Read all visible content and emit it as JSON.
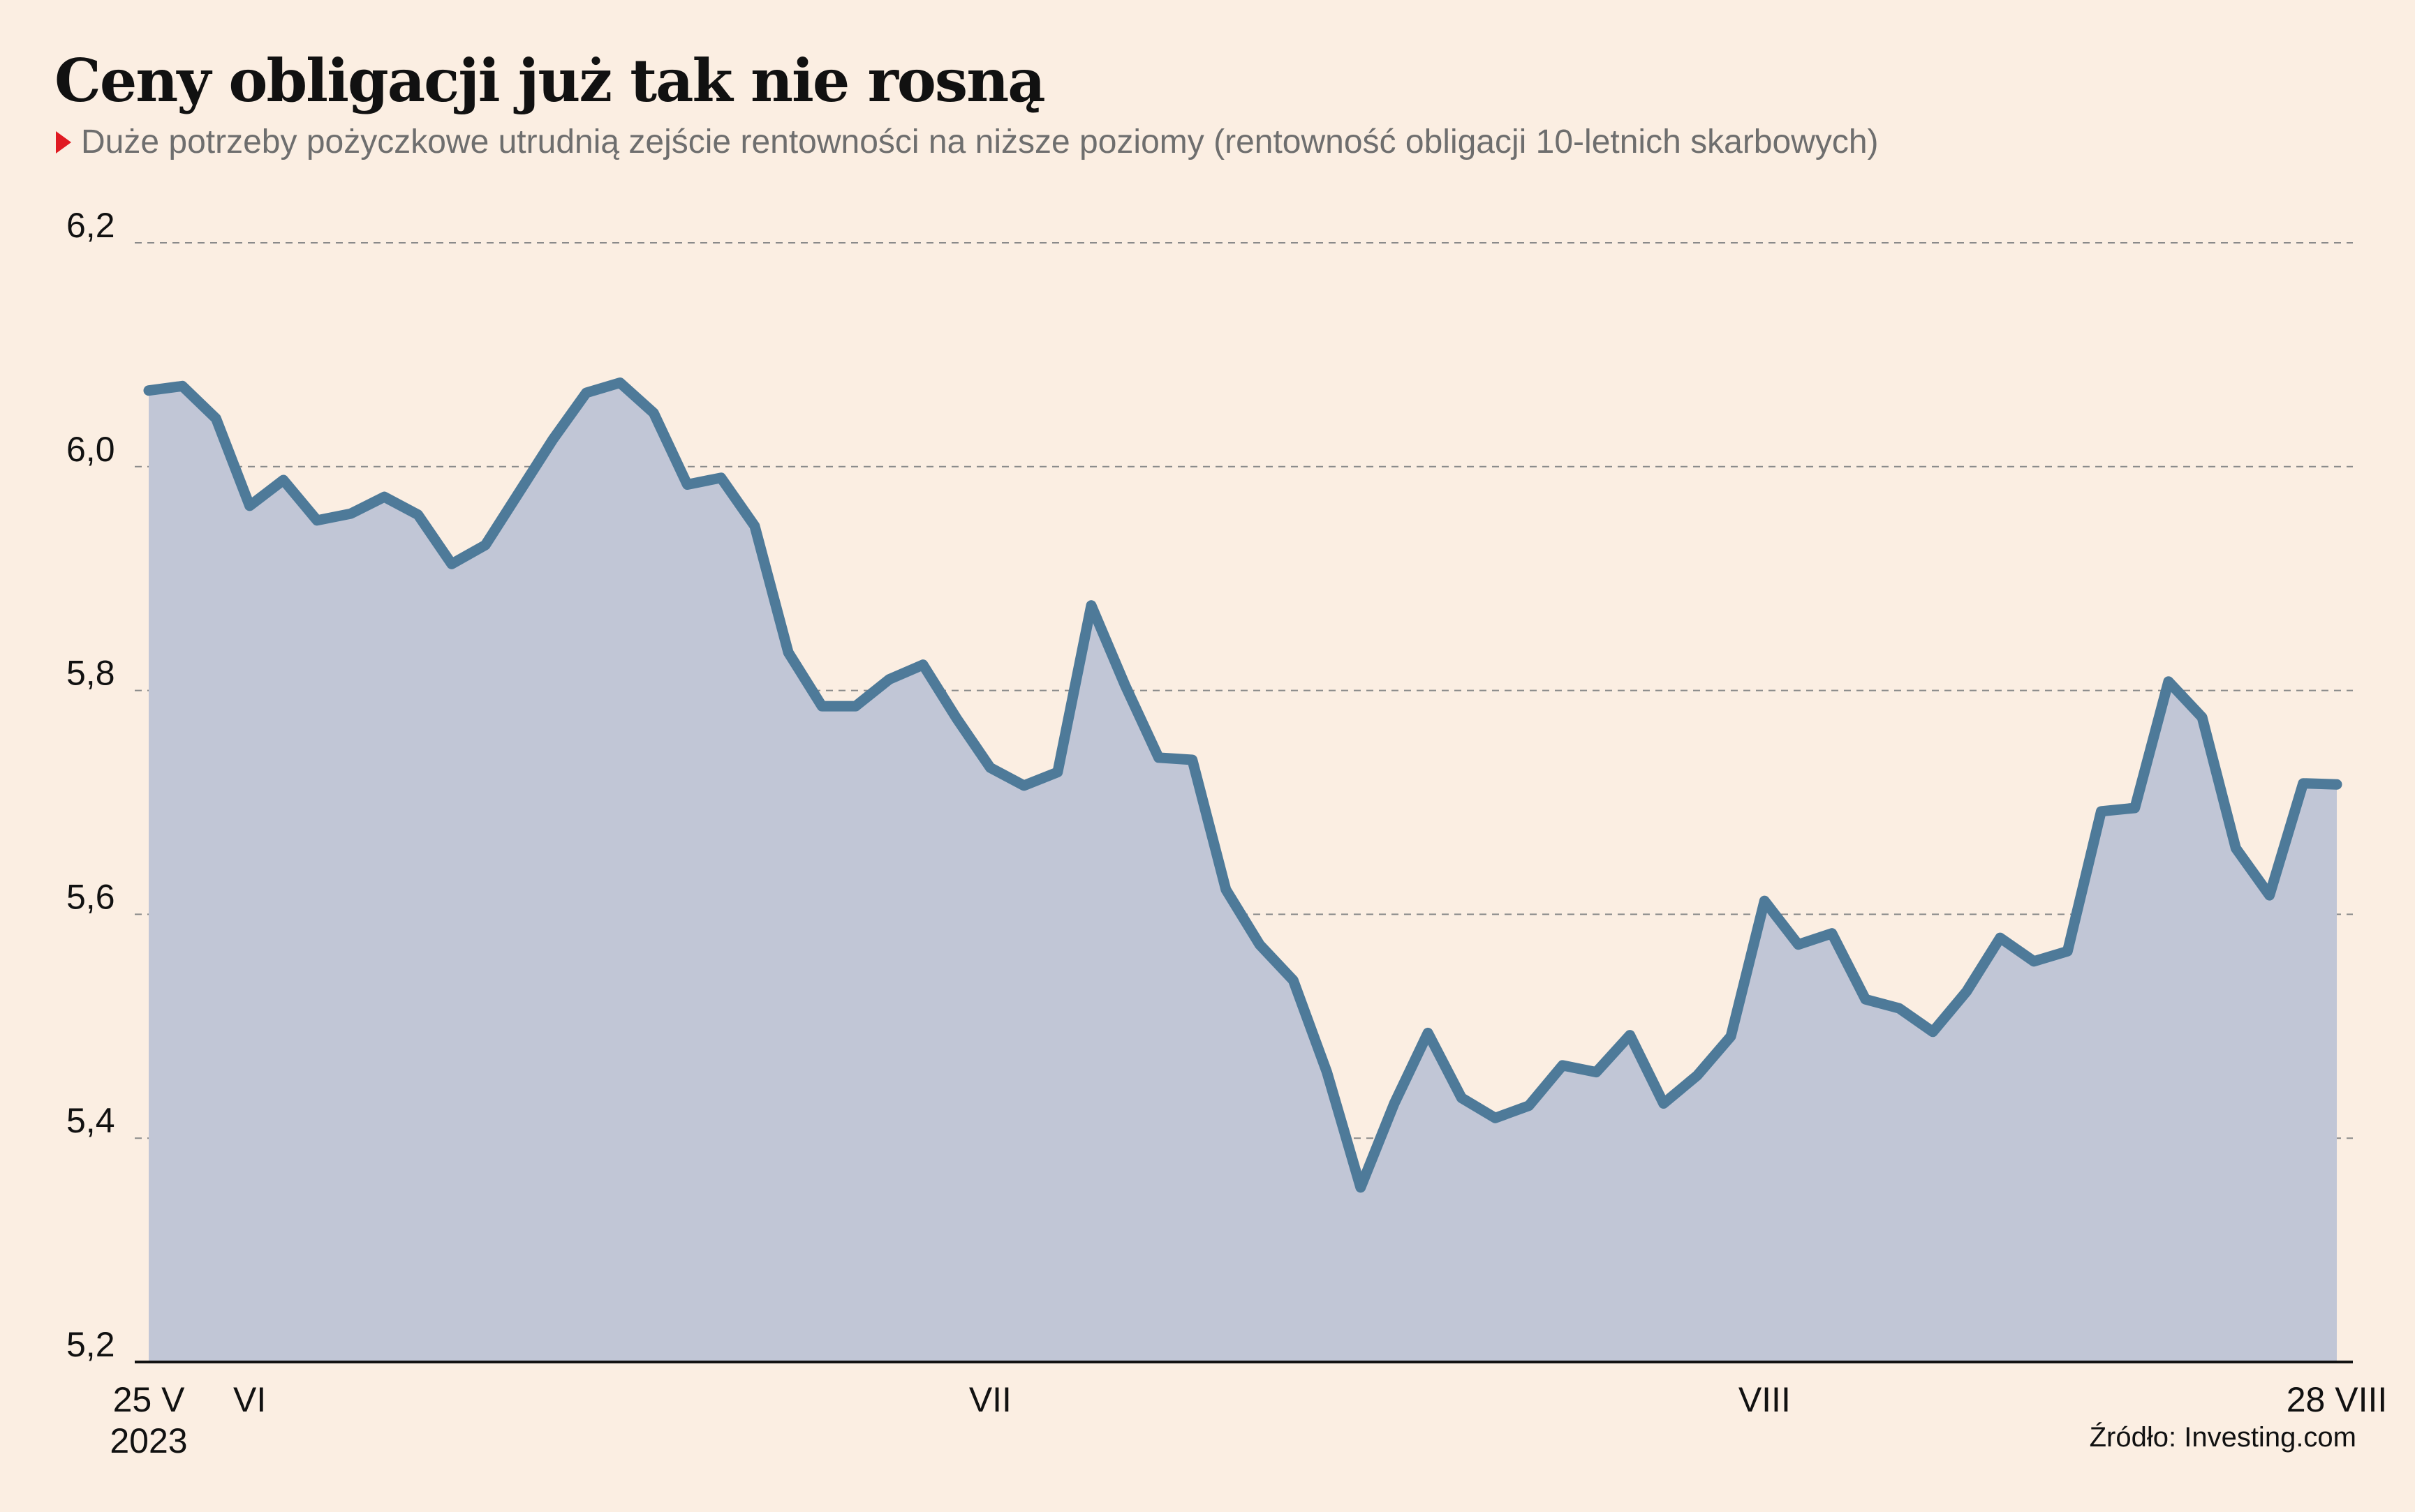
{
  "title": "Ceny obligacji już tak nie rosną",
  "subtitle": "Duże potrzeby pożyczkowe utrudnią zejście rentowności na niższe poziomy (rentowność obligacji 10-letnich skarbowych)",
  "source": "Źródło: Investing.com",
  "colors": {
    "line": "#4e7a99",
    "area": "#c1c6d6",
    "background": "#fbeee2",
    "grid": "#8a8a8a",
    "marker": "#e01a22"
  },
  "chart_data": {
    "type": "area",
    "title": "Ceny obligacji już tak nie rosną",
    "ylim": [
      5.2,
      6.2
    ],
    "y_ticks": [
      "6,2",
      "6,0",
      "5,8",
      "5,6",
      "5,4",
      "5,2"
    ],
    "y_tick_values": [
      6.2,
      6.0,
      5.8,
      5.6,
      5.4,
      5.2
    ],
    "grid": "horizontal dashed",
    "x_labels": [
      {
        "label": "25 V",
        "sub": "2023",
        "index": 0
      },
      {
        "label": "VI",
        "index": 3
      },
      {
        "label": "VII",
        "index": 25
      },
      {
        "label": "VIII",
        "index": 48
      },
      {
        "label": "28 VIII",
        "index": 65
      }
    ],
    "series": [
      {
        "values": [
          6.068,
          6.072,
          6.043,
          5.965,
          5.988,
          5.952,
          5.958,
          5.973,
          5.957,
          5.913,
          5.93,
          5.977,
          6.024,
          6.066,
          6.075,
          6.048,
          5.984,
          5.99,
          5.947,
          5.834,
          5.786,
          5.786,
          5.81,
          5.823,
          5.775,
          5.731,
          5.715,
          5.727,
          5.876,
          5.805,
          5.74,
          5.738,
          5.622,
          5.573,
          5.541,
          5.459,
          5.356,
          5.431,
          5.494,
          5.436,
          5.418,
          5.429,
          5.465,
          5.459,
          5.492,
          5.431,
          5.456,
          5.491,
          5.612,
          5.573,
          5.583,
          5.524,
          5.516,
          5.495,
          5.531,
          5.579,
          5.558,
          5.567,
          5.692,
          5.695,
          5.808,
          5.776,
          5.659,
          5.617,
          5.717,
          5.716
        ]
      }
    ]
  }
}
